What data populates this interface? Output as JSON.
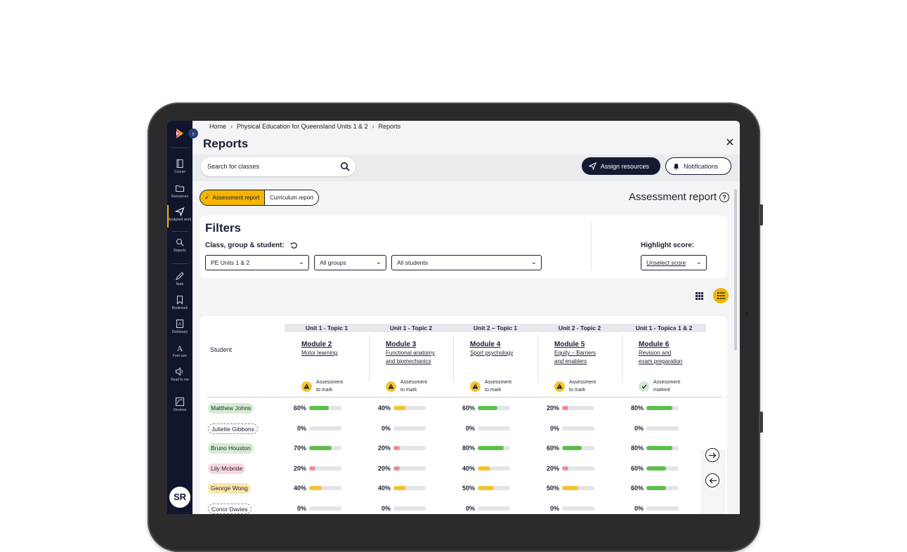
{
  "breadcrumb": [
    "Home",
    "Physical Education for Queensland Units 1 & 2",
    "Reports"
  ],
  "page_title": "Reports",
  "search": {
    "placeholder": "Search for classes"
  },
  "actions": {
    "assign": "Assign resources",
    "notifications": "Notifications"
  },
  "rail": {
    "items": [
      {
        "label": "Course",
        "icon": "book-icon"
      },
      {
        "label": "Resources",
        "icon": "folder-icon"
      },
      {
        "label": "Assigned work",
        "icon": "send-icon"
      },
      {
        "label": "Reports",
        "icon": "reports-icon"
      },
      {
        "label": "Note",
        "icon": "pencil-icon"
      },
      {
        "label": "Bookmark",
        "icon": "bookmark-icon"
      },
      {
        "label": "Dictionary",
        "icon": "dictionary-icon"
      },
      {
        "label": "Font size",
        "icon": "font-size-icon"
      },
      {
        "label": "Read to me",
        "icon": "speaker-icon"
      },
      {
        "label": "Desmos",
        "icon": "desmos-icon"
      }
    ],
    "active": "Assigned work",
    "avatar": "SR"
  },
  "tabs": {
    "assessment": "Assessment report",
    "curriculum": "Curriculum report",
    "active": "assessment"
  },
  "report_title": "Assessment report",
  "filters": {
    "title": "Filters",
    "subtitle": "Class, group & student:",
    "class_select": "PE Units 1 & 2",
    "group_select": "All groups",
    "student_select": "All students",
    "highlight_label": "Highlight score:",
    "highlight_select": "Unselect score"
  },
  "table": {
    "student_header": "Student",
    "columns": [
      {
        "unit": "Unit 1 - Topic 1",
        "module": "Module 2",
        "sub": [
          "Motor learning"
        ],
        "status": [
          "Assessment",
          "to mark"
        ],
        "state": "warn"
      },
      {
        "unit": "Unit 1 - Topic 2",
        "module": "Module 3",
        "sub": [
          "Functional anatomy",
          "and biomechanics"
        ],
        "status": [
          "Assessment",
          "to mark"
        ],
        "state": "warn"
      },
      {
        "unit": "Unit 2 – Topic 1",
        "module": "Module 4",
        "sub": [
          "Sport psychology"
        ],
        "status": [
          "Assessment",
          "to mark"
        ],
        "state": "warn"
      },
      {
        "unit": "Unit 2 - Topic 2",
        "module": "Module 5",
        "sub": [
          "Equity – Barriers",
          "and enablers"
        ],
        "status": [
          "Assessment",
          "to mark"
        ],
        "state": "warn"
      },
      {
        "unit": "Unit 1 - Topics 1 & 2",
        "module": "Module 6",
        "sub": [
          "Revision and",
          "exam preparation"
        ],
        "status": [
          "Assessment",
          "marked"
        ],
        "state": "ok"
      }
    ],
    "rows": [
      {
        "name": "Matthew Johns",
        "tone": "green",
        "scores": [
          60,
          40,
          60,
          20,
          80
        ],
        "labels": [
          "60%",
          "40%",
          "60%",
          "20%",
          "80%"
        ]
      },
      {
        "name": "Juliette Gibbons",
        "tone": "none",
        "scores": [
          0,
          0,
          0,
          0,
          0
        ],
        "labels": [
          "0%",
          "0%",
          "0%",
          "0%",
          "0%"
        ]
      },
      {
        "name": "Bruno Houston",
        "tone": "green",
        "scores": [
          70,
          20,
          80,
          60,
          80
        ],
        "labels": [
          "70%",
          "20%",
          "80%",
          "60%",
          "80%"
        ]
      },
      {
        "name": "Lily Mcbride",
        "tone": "red",
        "scores": [
          20,
          20,
          40,
          20,
          60
        ],
        "labels": [
          "20%",
          "20%",
          "40%",
          "20%",
          "60%"
        ]
      },
      {
        "name": "George Wong",
        "tone": "yellow",
        "scores": [
          40,
          40,
          50,
          50,
          60
        ],
        "labels": [
          "40%",
          "40%",
          "50%",
          "50%",
          "60%"
        ]
      },
      {
        "name": "Conor Davies",
        "tone": "none",
        "scores": [
          0,
          0,
          0,
          0,
          0
        ],
        "labels": [
          "0%",
          "0%",
          "0%",
          "0%",
          "0%"
        ]
      }
    ]
  },
  "colors": {
    "accent": "#f4b400",
    "navy": "#131a33",
    "green": "#5cbf4a",
    "yellow": "#f4c430",
    "red": "#f08a96",
    "track": "#e3e4e8"
  }
}
